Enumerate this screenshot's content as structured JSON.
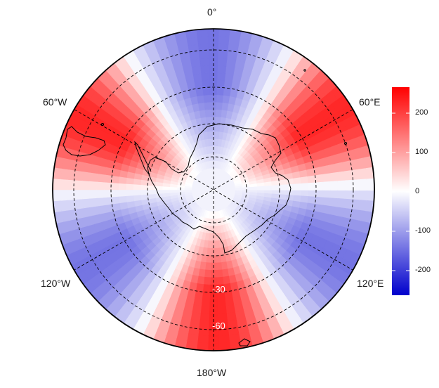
{
  "map": {
    "projection": "south polar stereographic",
    "longitude_labels": {
      "top": "0°",
      "upper_left": "60°W",
      "upper_right": "60°E",
      "lower_left": "120°W",
      "lower_right": "120°E",
      "bottom": "180°W"
    },
    "latitude_labels": [
      "-30",
      "-60"
    ],
    "gridlines": "dashed",
    "colormap": {
      "low": "#0000cc",
      "mid": "#ffffff",
      "high": "#ff0000"
    }
  },
  "colorbar": {
    "range": [
      -270,
      270
    ],
    "ticks": [
      "200",
      "100",
      "0",
      "-100",
      "-200"
    ]
  }
}
